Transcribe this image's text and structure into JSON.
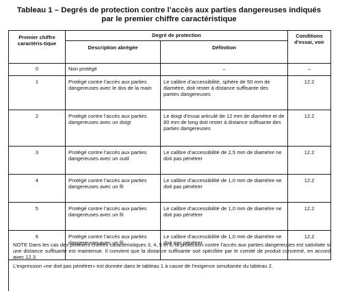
{
  "title": {
    "line1": "Tableau 1 – Degrés de protection contre l’accès aux parties dangereuses indiqués",
    "line2": "par le premier chiffre caractéristique"
  },
  "headers": {
    "first_digit": "Premier chiffre caractéris-tique",
    "protection": "Degré de protection",
    "description": "Description abrégée",
    "definition": "Définition",
    "conditions": "Conditions d’essai, voir"
  },
  "rows": [
    {
      "digit": "0",
      "description": "Non protégé",
      "definition": "–",
      "conditions": "–"
    },
    {
      "digit": "1",
      "description": "Protégé contre l’accès aux parties dangereuses avec le dos de la main",
      "definition": "Le calibre d’accessibilité, sphère de 50 mm de diamètre, doit rester à distance suffisante des parties dangereuses",
      "conditions": "12.2"
    },
    {
      "digit": "2",
      "description": "Protégé contre l’accès aux parties dangereuses avec un doigt",
      "definition": "Le doigt d’essai articulé de 12 mm de diamètre et de 80 mm de long doit rester à distance suffisante des parties dangereuses",
      "conditions": "12.2"
    },
    {
      "digit": "3",
      "description": "Protégé contre l’accès aux parties dangereuses avec un outil",
      "definition": "Le calibre d’accessibilité de 2,5 mm de diamètre ne doit pas pénétrer",
      "conditions": "12.2"
    },
    {
      "digit": "4",
      "description": "Protégé contre l’accès aux parties dangereuses avec un fil",
      "definition": "Le calibre d’accessibilité de 1,0 mm de diamètre ne doit pas pénétrer",
      "conditions": "12.2"
    },
    {
      "digit": "5",
      "description": "Protégé contre l’accès aux parties dangereuses avec un fil",
      "definition": "Le calibre d’accessibilité de 1,0 mm de diamètre ne doit pas pénétrer",
      "conditions": "12.2"
    },
    {
      "digit": "6",
      "description": "Protégé contre l’accès aux parties dangereuses avec un fil",
      "definition": "Le calibre d’accessibilité de 1,0 mm de diamètre ne doit pas pénétrer",
      "conditions": "12.2"
    }
  ],
  "note": {
    "paragraph1": "NOTE  Dans les cas des premiers chiffres caractéristiques 3, 4, 5 et 6, la protection contre l’accès aux parties dangereuses est satisfaite si une distance suffisante est maintenue. Il convient que la distance suffisante soit spécifiée par le comité de produit concerné, en accord avec 12.3.",
    "paragraph2": "L’expression «ne doit pas pénétrer» est donnée dans le tableau 1 à cause de l’exigence simultanée du tableau 2."
  }
}
